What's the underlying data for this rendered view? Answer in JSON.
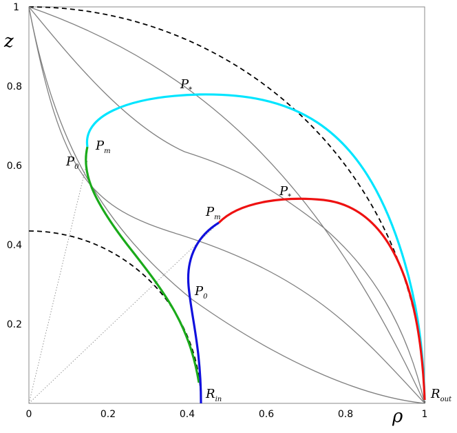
{
  "figure": {
    "axes": {
      "x_name": "ρ",
      "y_name": "z",
      "xlim": [
        0,
        1
      ],
      "ylim": [
        0,
        1
      ],
      "x_ticks": [
        "0",
        "0.2",
        "0.4",
        "0.6",
        "0.8",
        "1"
      ],
      "y_ticks": [
        "0.2",
        "0.4",
        "0.6",
        "0.8",
        "1"
      ]
    },
    "labels": {
      "p_star": "P",
      "p_star_sub": "*",
      "p_m": "P",
      "p_m_sub": "m",
      "p_0": "P",
      "p_0_sub": "0",
      "r": "R",
      "r_in_sub": "in",
      "r_out_sub": "out"
    },
    "colors": {
      "cyan": "#00e5ff",
      "green": "#1aaa1a",
      "red": "#ee1111",
      "blue": "#1010dd",
      "gray": "#808080"
    }
  }
}
